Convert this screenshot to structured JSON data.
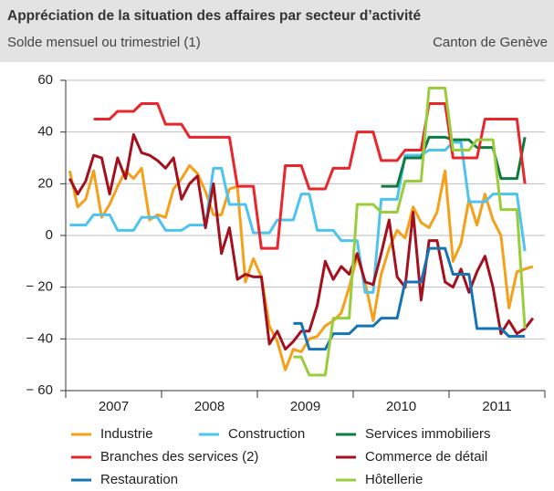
{
  "chart_data": {
    "type": "line",
    "title": "Appréciation de la situation des affaires par secteur d’activité",
    "subtitle": "Solde mensuel ou trimestriel (1)",
    "annotation": "Canton de Genève",
    "categories": [
      null,
      null,
      null,
      null,
      null,
      null,
      "2007",
      null,
      null,
      null,
      null,
      null,
      null,
      null,
      null,
      null,
      null,
      null,
      "2008",
      null,
      null,
      null,
      null,
      null,
      null,
      null,
      null,
      null,
      null,
      null,
      "2009",
      null,
      null,
      null,
      null,
      null,
      null,
      null,
      null,
      null,
      null,
      null,
      "2010",
      null,
      null,
      null,
      null,
      null,
      null,
      null,
      null,
      null,
      null,
      null,
      "2011",
      null,
      null,
      null,
      null
    ],
    "ylim": [
      -60,
      60
    ],
    "yticks": [
      {
        "value": -60,
        "label": "− 60"
      },
      {
        "value": -40,
        "label": "− 40"
      },
      {
        "value": -20,
        "label": "− 20"
      },
      0,
      20,
      40,
      60
    ],
    "grid": true,
    "series": [
      {
        "name": "Industrie",
        "color": "#f5a01a",
        "values": [
          25,
          11,
          14,
          25,
          7,
          12,
          19,
          25,
          22,
          26,
          6,
          8,
          7,
          18,
          22,
          27,
          24,
          17,
          8,
          8,
          18,
          19,
          -18,
          -9,
          -16,
          -35,
          -41,
          -52,
          -44,
          -45,
          -40,
          -39,
          -35,
          -33,
          -30,
          -20,
          -8,
          -18,
          -33,
          -15,
          -5,
          2,
          -1,
          11,
          5,
          3,
          9,
          25,
          -10,
          -3,
          14,
          4,
          16,
          6,
          0,
          -28,
          -14,
          -13,
          -12
        ]
      },
      {
        "name": "Construction",
        "color": "#4dc4ef",
        "values": [
          4,
          4,
          4,
          8,
          8,
          8,
          2,
          2,
          2,
          7,
          7,
          7,
          2,
          2,
          2,
          4,
          4,
          4,
          26,
          26,
          12,
          12,
          12,
          1,
          1,
          1,
          6,
          6,
          6,
          16,
          16,
          2,
          2,
          2,
          -2,
          -2,
          -2,
          -22,
          -22,
          14,
          14,
          14,
          31,
          31,
          31,
          33,
          33,
          33,
          36,
          36,
          13,
          13,
          13,
          16,
          16,
          16,
          16,
          -6,
          null
        ]
      },
      {
        "name": "Services immobiliers",
        "color": "#0f7b3f",
        "values": [
          null,
          null,
          null,
          null,
          null,
          null,
          null,
          null,
          null,
          null,
          null,
          null,
          null,
          null,
          null,
          null,
          null,
          null,
          null,
          null,
          null,
          null,
          null,
          null,
          null,
          null,
          null,
          null,
          null,
          null,
          null,
          null,
          null,
          null,
          null,
          null,
          null,
          null,
          null,
          19,
          19,
          19,
          30,
          30,
          30,
          38,
          38,
          38,
          37,
          37,
          37,
          34,
          34,
          34,
          22,
          22,
          22,
          38,
          null
        ]
      },
      {
        "name": "Branches des services (2)",
        "color": "#e8262b",
        "values": [
          null,
          null,
          null,
          45,
          45,
          45,
          48,
          48,
          48,
          51,
          51,
          51,
          43,
          43,
          43,
          38,
          38,
          38,
          38,
          38,
          38,
          19,
          19,
          19,
          -5,
          -5,
          -5,
          27,
          27,
          27,
          18,
          18,
          18,
          26,
          26,
          26,
          40,
          40,
          40,
          29,
          29,
          29,
          33,
          33,
          33,
          51,
          51,
          51,
          30,
          30,
          30,
          30,
          45,
          45,
          45,
          45,
          45,
          20,
          null
        ]
      },
      {
        "name": "Commerce de détail",
        "color": "#a3111e",
        "values": [
          22,
          16,
          21,
          31,
          30,
          16,
          30,
          22,
          39,
          32,
          31,
          29,
          26,
          30,
          14,
          20,
          23,
          3,
          20,
          -7,
          3,
          -17,
          -15,
          -16,
          -16,
          -42,
          -37,
          -44,
          -41,
          -37,
          -37,
          -27,
          -10,
          -17,
          -12,
          -15,
          -7,
          -18,
          -19,
          -7,
          6,
          -16,
          -20,
          9,
          -25,
          -2,
          -2,
          -18,
          -20,
          -13,
          -22,
          -14,
          -8,
          -20,
          -38,
          -33,
          -38,
          -36,
          -32
        ]
      },
      {
        "name": "Restauration",
        "color": "#1674b6",
        "values": [
          null,
          null,
          null,
          null,
          null,
          null,
          null,
          null,
          null,
          null,
          null,
          null,
          null,
          null,
          null,
          null,
          null,
          null,
          null,
          null,
          null,
          null,
          null,
          null,
          null,
          null,
          null,
          null,
          -34,
          -34,
          -44,
          -44,
          -44,
          -38,
          -38,
          -38,
          -35,
          -35,
          -35,
          -32,
          -32,
          -32,
          -18,
          -18,
          -18,
          -5,
          -5,
          -5,
          -15,
          -15,
          -15,
          -36,
          -36,
          -36,
          -36,
          -39,
          -39,
          -39,
          null
        ]
      },
      {
        "name": "Hôtellerie",
        "color": "#9acd3c",
        "values": [
          null,
          null,
          null,
          null,
          null,
          null,
          null,
          null,
          null,
          null,
          null,
          null,
          null,
          null,
          null,
          null,
          null,
          null,
          null,
          null,
          null,
          null,
          null,
          null,
          null,
          null,
          null,
          null,
          -47,
          -47,
          -54,
          -54,
          -54,
          -32,
          -32,
          -32,
          12,
          12,
          12,
          9,
          9,
          9,
          21,
          21,
          21,
          57,
          57,
          57,
          33,
          33,
          33,
          37,
          37,
          37,
          10,
          10,
          10,
          -36,
          null
        ]
      }
    ]
  }
}
